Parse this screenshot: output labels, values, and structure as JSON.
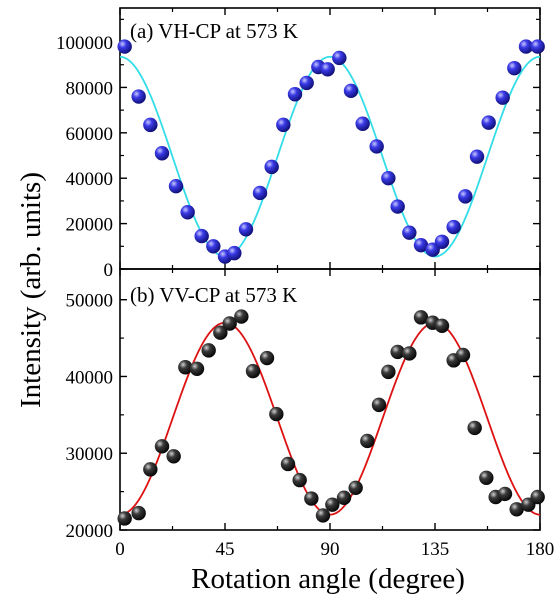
{
  "figure": {
    "ylabel": "Intensity (arb. units)",
    "xlabel": "Rotation angle (degree)"
  },
  "chart_data": [
    {
      "type": "scatter",
      "panel_label": "(a) VH-CP at 573 K",
      "xlim": [
        0,
        180
      ],
      "ylim": [
        0,
        115000
      ],
      "x_ticks": [
        0,
        45,
        90,
        135,
        180
      ],
      "x_tick_labels": [
        "0",
        "45",
        "90",
        "135",
        "180"
      ],
      "y_ticks": [
        0,
        20000,
        40000,
        60000,
        80000,
        100000
      ],
      "y_tick_labels": [
        "0",
        "20000",
        "40000",
        "60000",
        "80000",
        "100000"
      ],
      "marker_color": "#2a2ad8",
      "fit_color": "#33dde8",
      "series": [
        {
          "role": "data",
          "x": [
            2,
            8,
            13,
            18,
            24,
            29,
            35,
            40,
            45,
            49,
            54,
            60,
            65,
            70,
            75,
            80,
            85,
            89,
            94,
            99,
            104,
            110,
            115,
            119,
            124,
            129,
            134,
            138,
            143,
            148,
            153,
            158,
            164,
            169,
            174,
            179
          ],
          "y": [
            98000,
            76000,
            63500,
            51000,
            36500,
            25000,
            14500,
            10000,
            5500,
            7000,
            17500,
            33500,
            45000,
            63500,
            77000,
            82000,
            89000,
            88000,
            93000,
            78500,
            64000,
            54000,
            40000,
            27500,
            16000,
            10500,
            8500,
            12000,
            18500,
            32000,
            49500,
            64500,
            75500,
            88500,
            98000,
            98000
          ]
        },
        {
          "role": "fit",
          "equation": "49500 + 44000*cos(4*x)",
          "x_range": [
            0,
            180
          ]
        }
      ]
    },
    {
      "type": "scatter",
      "panel_label": "(b) VV-CP at 573 K",
      "xlim": [
        0,
        180
      ],
      "ylim": [
        20000,
        54000
      ],
      "x_ticks": [
        0,
        45,
        90,
        135,
        180
      ],
      "x_tick_labels": [
        "0",
        "45",
        "90",
        "135",
        "180"
      ],
      "y_ticks": [
        20000,
        30000,
        40000,
        50000
      ],
      "y_tick_labels": [
        "20000",
        "30000",
        "40000",
        "50000"
      ],
      "marker_color": "#000000",
      "fit_color": "#dd1111",
      "series": [
        {
          "role": "data",
          "x": [
            2,
            8,
            13,
            18,
            23,
            28,
            33,
            38,
            43,
            47,
            52,
            57,
            63,
            67,
            72,
            77,
            82,
            87,
            91,
            96,
            101,
            106,
            111,
            115,
            119,
            124,
            129,
            134,
            138,
            143,
            147,
            152,
            157,
            161,
            165,
            170,
            175,
            179
          ],
          "y": [
            21500,
            22200,
            27900,
            30900,
            29600,
            41200,
            41000,
            43400,
            45700,
            46900,
            47800,
            40700,
            42400,
            35100,
            28600,
            26500,
            24100,
            21900,
            23300,
            24200,
            25500,
            31600,
            36300,
            40600,
            43200,
            43000,
            47700,
            47000,
            46600,
            42100,
            42800,
            33300,
            26800,
            24300,
            24700,
            22700,
            23300,
            24300
          ]
        },
        {
          "role": "fit",
          "equation": "34500 - 12500*cos(4*x)",
          "x_range": [
            0,
            180
          ]
        }
      ]
    }
  ]
}
